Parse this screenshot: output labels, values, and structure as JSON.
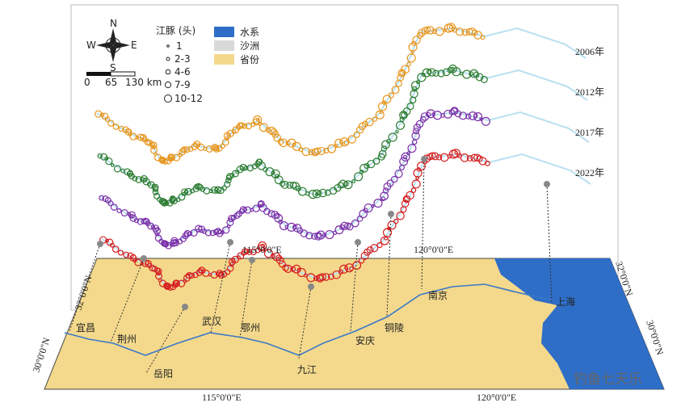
{
  "compass": {
    "n": "N",
    "e": "E",
    "s": "S",
    "w": "W"
  },
  "legend": {
    "title": "江豚 (头)",
    "sizes": [
      "1",
      "2-3",
      "4-6",
      "7-9",
      "10-12"
    ],
    "layers": [
      "水系",
      "沙洲",
      "省份"
    ]
  },
  "scale_bar": [
    "0",
    "65",
    "130 km"
  ],
  "years": [
    "2006年",
    "2012年",
    "2017年",
    "2022年"
  ],
  "coordinates": {
    "top": [
      "115°0'0\"E",
      "120°0'0\"E"
    ],
    "bottom": [
      "115°0'0\"E",
      "120°0'0\"E"
    ],
    "left": [
      "32°0'0\"N",
      "30°0'0\"N"
    ],
    "right": [
      "32°0'0\"N",
      "30°0'0\"N"
    ]
  },
  "cities": [
    "宜昌",
    "荆州",
    "岳阳",
    "武汉",
    "鄂州",
    "九江",
    "安庆",
    "铜陵",
    "南京",
    "上海"
  ],
  "watermark": "钓鱼七天乐"
}
